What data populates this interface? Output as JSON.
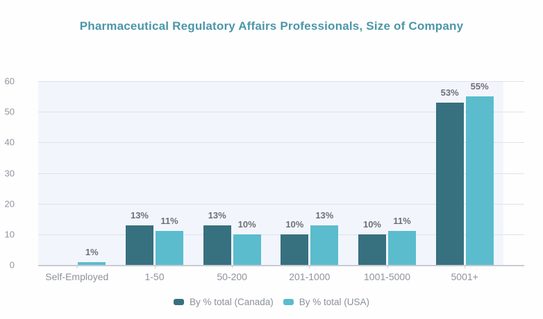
{
  "title": "Pharmaceutical Regulatory Affairs Professionals, Size of Company",
  "chart_data": {
    "type": "bar",
    "title": "Pharmaceutical Regulatory Affairs Professionals, Size of Company",
    "categories": [
      "Self-Employed",
      "1-50",
      "50-200",
      "201-1000",
      "1001-5000",
      "5001+"
    ],
    "series": [
      {
        "name": "By % total (Canada)",
        "color": "#37707f",
        "values": [
          0,
          13,
          13,
          10,
          10,
          53
        ],
        "data_labels": [
          "",
          "13%",
          "13%",
          "10%",
          "10%",
          "53%"
        ]
      },
      {
        "name": "By % total (USA)",
        "color": "#5abccd",
        "values": [
          1,
          11,
          10,
          13,
          11,
          55
        ],
        "data_labels": [
          "1%",
          "11%",
          "10%",
          "13%",
          "11%",
          "55%"
        ]
      }
    ],
    "unit": "%",
    "ylim": [
      0,
      60
    ],
    "yticks": [
      0,
      10,
      20,
      30,
      40,
      50,
      60
    ],
    "xlabel": "",
    "ylabel": "",
    "grid": true,
    "legend_position": "bottom",
    "plot_background": "#f2f6fc",
    "gridline_color": "#dde1e9",
    "axis_line_color": "#c7cbd4",
    "tick_label_color": "#8f939c",
    "value_label_color": "#6d7177",
    "title_color": "#4b96a9",
    "legend_text_color": "#8b9099"
  }
}
